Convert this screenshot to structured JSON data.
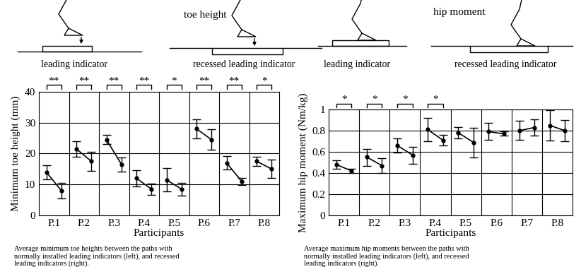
{
  "chart_data": [
    {
      "type": "line",
      "title": "toe height",
      "annotations": [
        "leading indicator",
        "recessed leading indicator"
      ],
      "caption": [
        "Average minimum toe heights between the paths with",
        "normally installed leading indicators (left), and recessed",
        "leading indicators (right)."
      ],
      "x_label": "Participants",
      "y_label": "Minimum toe height (mm)",
      "categories": [
        "P.1",
        "P.2",
        "P.3",
        "P.4",
        "P.5",
        "P.6",
        "P.7",
        "P.8"
      ],
      "series": [
        {
          "color": "#000000",
          "marker": "circle",
          "values": [
            14,
            21.5,
            24.5,
            12,
            11.5,
            28,
            17,
            17.5
          ],
          "errors": [
            2.3,
            2.5,
            1.5,
            2.7,
            3.7,
            3,
            2.2,
            1.5
          ]
        },
        {
          "color": "#000000",
          "marker": "circle",
          "values": [
            8,
            17.5,
            16.5,
            8.5,
            8.5,
            24.5,
            11,
            15
          ],
          "errors": [
            2.5,
            3,
            2.3,
            1.8,
            2,
            3.3,
            1.2,
            3
          ]
        }
      ],
      "significance": [
        "**",
        "**",
        "**",
        "**",
        "*",
        "**",
        "**",
        "*"
      ],
      "ylim": [
        0,
        40
      ],
      "yticks": [
        0,
        10,
        20,
        30,
        40
      ],
      "grid": true
    },
    {
      "type": "line",
      "title": "hip moment",
      "annotations": [
        "leading indicator",
        "recessed leading indicator"
      ],
      "caption": [
        "Average maximum hip moments between the paths with",
        "normally installed leading indicators (left), and recessed",
        "leading indicators (right)."
      ],
      "x_label": "Participants",
      "y_label": "Maximum hip moment (Nm/kg)",
      "categories": [
        "P.1",
        "P.2",
        "P.3",
        "P.4",
        "P.5",
        "P.6",
        "P.7",
        "P.8"
      ],
      "series": [
        {
          "color": "#000000",
          "marker": "circle",
          "values": [
            0.48,
            0.55,
            0.66,
            0.81,
            0.78,
            0.79,
            0.8,
            0.85
          ],
          "errors": [
            0.04,
            0.08,
            0.07,
            0.11,
            0.05,
            0.08,
            0.09,
            0.14
          ]
        },
        {
          "color": "#000000",
          "marker": "circle",
          "values": [
            0.42,
            0.47,
            0.57,
            0.71,
            0.69,
            0.77,
            0.83,
            0.8
          ],
          "errors": [
            0.02,
            0.07,
            0.08,
            0.05,
            0.14,
            0.02,
            0.08,
            0.1
          ]
        }
      ],
      "significance": [
        "*",
        "*",
        "*",
        "*",
        null,
        null,
        null,
        null
      ],
      "ylim": [
        0,
        1
      ],
      "yticks": [
        0,
        0.2,
        0.4,
        0.6,
        0.8,
        1
      ],
      "grid": true
    }
  ]
}
